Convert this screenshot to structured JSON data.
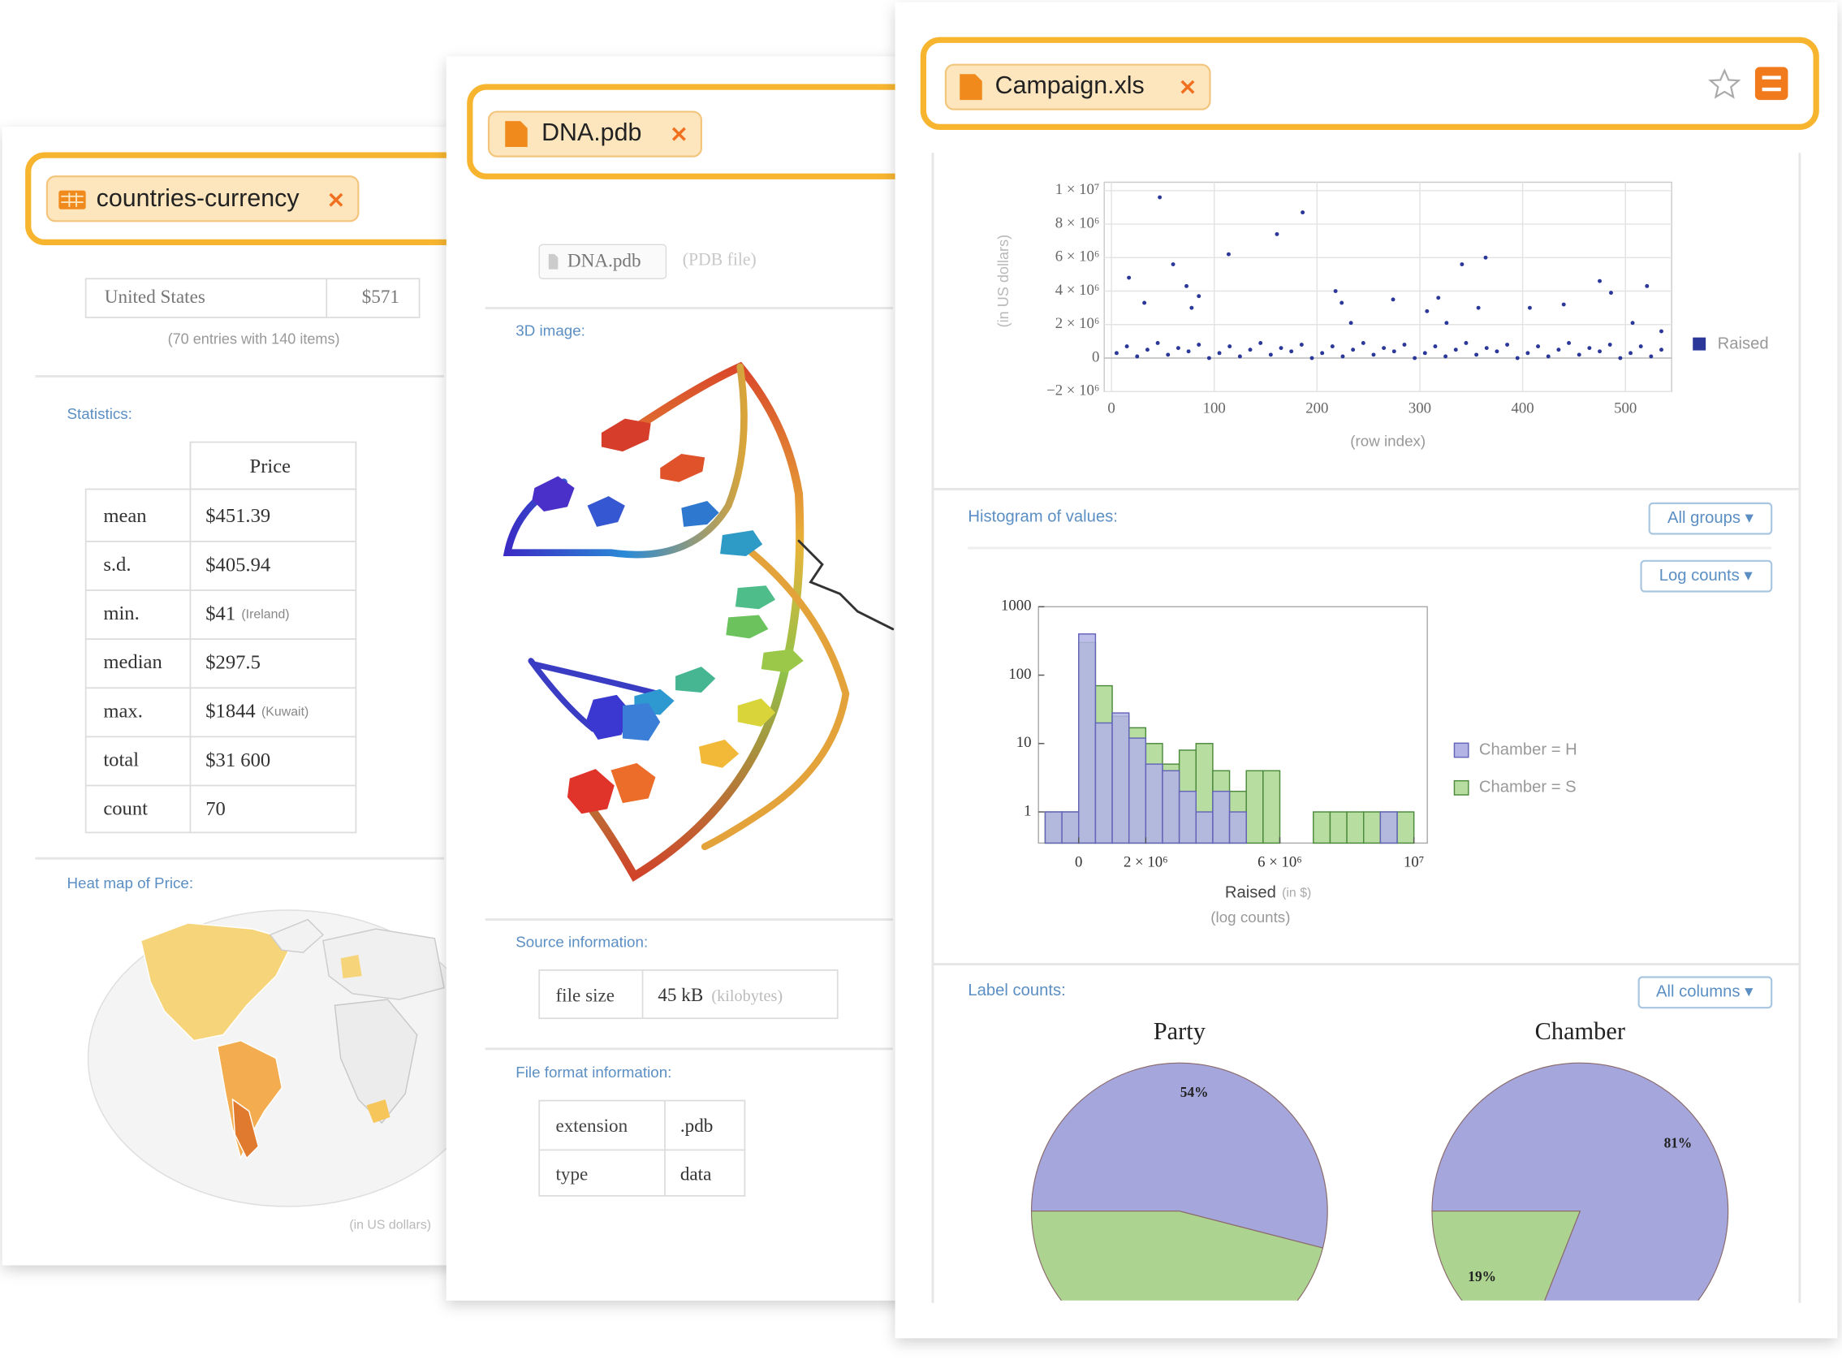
{
  "cards": [
    {
      "tab": "countries-currency",
      "top_row": [
        "United States",
        "$571"
      ],
      "entries_note": "(70 entries with 140 items)",
      "statistics_label": "Statistics:",
      "stats_header": "Price",
      "stats": [
        {
          "label": "mean",
          "value": "$451.39"
        },
        {
          "label": "s.d.",
          "value": "$405.94"
        },
        {
          "label": "min.",
          "value": "$41",
          "note": "(Ireland)"
        },
        {
          "label": "median",
          "value": "$297.5"
        },
        {
          "label": "max.",
          "value": "$1844",
          "note": "(Kuwait)"
        },
        {
          "label": "total",
          "value": "$31 600"
        },
        {
          "label": "count",
          "value": "70"
        }
      ],
      "heatmap_label": "Heat map of Price:",
      "heatmap_note": "(in US dollars)"
    },
    {
      "tab": "DNA.pdb",
      "file_chip": "DNA.pdb",
      "file_kind": "(PDB file)",
      "image_label": "3D image:",
      "source_label": "Source information:",
      "source": {
        "label": "file size",
        "value": "45 kB",
        "note": "(kilobytes)"
      },
      "format_label": "File format information:",
      "format": [
        [
          "extension",
          ".pdb"
        ],
        [
          "type",
          "data"
        ]
      ]
    },
    {
      "tab": "Campaign.xls",
      "scatter": {
        "type": "scatter",
        "ylabel": "(in US dollars)",
        "xlabel": "(row index)",
        "xlim": [
          -7,
          545
        ],
        "xticks": [
          0,
          100,
          200,
          300,
          400,
          500
        ],
        "ylim": [
          -2000000,
          10500000
        ],
        "yticks": [
          {
            "value": -2000000,
            "label": "−2 × 10⁶"
          },
          0,
          {
            "value": 2000000,
            "label": "2 × 10⁶"
          },
          {
            "value": 4000000,
            "label": "4 × 10⁶"
          },
          {
            "value": 6000000,
            "label": "6 × 10⁶"
          },
          {
            "value": 8000000,
            "label": "8 × 10⁶"
          },
          {
            "value": 10000000,
            "label": "1 × 10⁷"
          }
        ],
        "grid": true,
        "legend": "right",
        "x": [
          47,
          17,
          32,
          60,
          73,
          78,
          85,
          114,
          161,
          186,
          218,
          224,
          233,
          274,
          307,
          318,
          326,
          341,
          357,
          364,
          407,
          440,
          475,
          486,
          521,
          535,
          507,
          5,
          15,
          25,
          35,
          45,
          55,
          65,
          75,
          85,
          95,
          105,
          115,
          125,
          135,
          145,
          155,
          165,
          175,
          185,
          195,
          205,
          215,
          225,
          235,
          245,
          255,
          265,
          275,
          285,
          295,
          305,
          315,
          325,
          335,
          345,
          355,
          365,
          375,
          385,
          395,
          405,
          415,
          425,
          435,
          445,
          455,
          465,
          475,
          485,
          495,
          505,
          515,
          525,
          535
        ],
        "series": [
          {
            "name": "Raised",
            "color": "#2b3899",
            "values": [
              9600000,
              4800000,
              3300000,
              5600000,
              4300000,
              3000000,
              3700000,
              6200000,
              7400000,
              8700000,
              4000000,
              3300000,
              2100000,
              3500000,
              2800000,
              3600000,
              2100000,
              5600000,
              3000000,
              6000000,
              3000000,
              3200000,
              4600000,
              3900000,
              4300000,
              1600000,
              2100000,
              300000,
              700000,
              100000,
              500000,
              900000,
              200000,
              600000,
              400000,
              800000,
              0,
              300000,
              700000,
              100000,
              500000,
              900000,
              200000,
              600000,
              400000,
              800000,
              0,
              300000,
              700000,
              100000,
              500000,
              900000,
              200000,
              600000,
              400000,
              800000,
              0,
              300000,
              700000,
              100000,
              500000,
              900000,
              200000,
              600000,
              400000,
              800000,
              0,
              300000,
              700000,
              100000,
              500000,
              900000,
              200000,
              600000,
              400000,
              800000,
              0,
              300000,
              700000,
              100000,
              500000
            ]
          }
        ]
      },
      "histogram_label": "Histogram of values:",
      "groups_menu": "All groups ▾",
      "counts_menu": "Log counts ▾",
      "histogram": {
        "type": "histogram",
        "xlabel": "Raised",
        "xlabel_note": "(in $)",
        "scale_note": "(log counts)",
        "log_y": true,
        "xlim": [
          -1200000,
          10400000
        ],
        "xticks": [
          0,
          {
            "value": 2000000,
            "label": "2 × 10⁶"
          },
          {
            "value": 6000000,
            "label": "6 × 10⁶"
          },
          {
            "value": 10000000,
            "label": "10⁷"
          }
        ],
        "ylim": [
          0.35,
          1000
        ],
        "yticks": [
          1,
          10,
          100,
          1000
        ],
        "legend": "right",
        "bins": [
          -1000000,
          -500000,
          0,
          500000,
          1000000,
          1500000,
          2000000,
          2500000,
          3000000,
          3500000,
          4000000,
          4500000,
          5000000,
          5500000,
          6000000,
          6500000,
          7000000,
          7500000,
          8000000,
          8500000,
          9000000,
          9500000,
          10000000
        ],
        "series": [
          {
            "name": "Chamber = H",
            "color": "#b3b3e6",
            "values": [
              1,
              1,
              400,
              20,
              28,
              12,
              5,
              4,
              2,
              1,
              2,
              1,
              0,
              0,
              0,
              0,
              0,
              0,
              0,
              0,
              1,
              0
            ]
          },
          {
            "name": "Chamber = S",
            "color": "#b7dda0",
            "values": [
              1,
              1,
              300,
              70,
              25,
              17,
              10,
              5,
              8,
              10,
              4,
              2,
              4,
              4,
              0,
              0,
              1,
              1,
              1,
              1,
              1,
              1
            ]
          }
        ]
      },
      "label_counts_label": "Label counts:",
      "columns_menu": "All columns ▾",
      "pies": [
        {
          "type": "pie",
          "title": "Party",
          "values": [
            54,
            46
          ],
          "value_labels": [
            "54%",
            null
          ],
          "colors": [
            "#a5a6dc",
            "#acd38f"
          ]
        },
        {
          "type": "pie",
          "title": "Chamber",
          "values": [
            81,
            19
          ],
          "value_labels": [
            "81%",
            "19%"
          ],
          "colors": [
            "#a5a6dc",
            "#acd38f"
          ]
        }
      ]
    }
  ]
}
